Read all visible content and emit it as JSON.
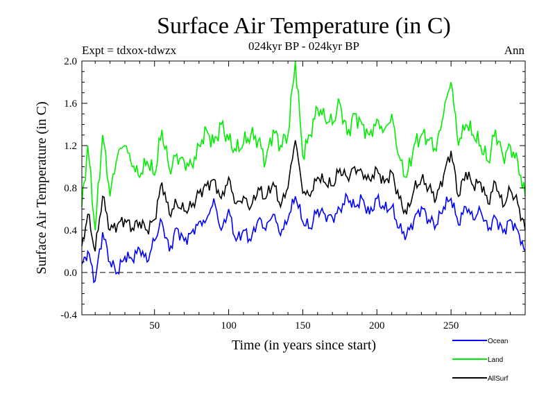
{
  "chart_data": {
    "type": "line",
    "title": "Surface Air Temperature (in C)",
    "subtitle": "024kyr BP - 024kyr BP",
    "experiment": "Expt = tdxox-tdwzx",
    "season": "Ann",
    "xlabel": "Time (in years since start)",
    "ylabel": "Surface Air Temperature (in C)",
    "xlim": [
      1,
      300
    ],
    "ylim": [
      -0.4,
      2.0
    ],
    "xticks": [
      50,
      100,
      150,
      200,
      250
    ],
    "yticks": [
      -0.4,
      0.0,
      0.4,
      0.8,
      1.2,
      1.6,
      2.0
    ],
    "ytick_labels": [
      "-0.4",
      "0.0",
      "0.4",
      "0.8",
      "1.2",
      "1.6",
      "2.0"
    ],
    "zero_line": 0.0,
    "grid": false,
    "legend_position": "bottom-right",
    "series": [
      {
        "name": "Ocean",
        "color": "#0000ff",
        "x": [
          1,
          5,
          10,
          15,
          20,
          25,
          30,
          35,
          40,
          45,
          50,
          55,
          60,
          65,
          70,
          75,
          80,
          85,
          90,
          95,
          100,
          105,
          110,
          115,
          120,
          125,
          130,
          135,
          140,
          145,
          150,
          155,
          160,
          165,
          170,
          175,
          180,
          185,
          190,
          195,
          200,
          205,
          210,
          215,
          220,
          225,
          230,
          235,
          240,
          245,
          250,
          255,
          260,
          265,
          270,
          275,
          280,
          285,
          290,
          295,
          300
        ],
        "values": [
          0.08,
          0.2,
          -0.08,
          0.38,
          0.1,
          0.0,
          0.15,
          0.12,
          0.22,
          0.1,
          0.3,
          0.48,
          0.2,
          0.42,
          0.3,
          0.38,
          0.48,
          0.5,
          0.7,
          0.4,
          0.6,
          0.3,
          0.4,
          0.3,
          0.5,
          0.4,
          0.55,
          0.35,
          0.5,
          0.72,
          0.48,
          0.42,
          0.6,
          0.55,
          0.52,
          0.6,
          0.72,
          0.62,
          0.7,
          0.55,
          0.7,
          0.6,
          0.62,
          0.42,
          0.35,
          0.5,
          0.62,
          0.5,
          0.45,
          0.62,
          0.7,
          0.45,
          0.62,
          0.5,
          0.58,
          0.4,
          0.52,
          0.38,
          0.5,
          0.4,
          0.2
        ]
      },
      {
        "name": "Land",
        "color": "#00ee00",
        "x": [
          1,
          5,
          10,
          15,
          20,
          25,
          30,
          35,
          40,
          45,
          50,
          55,
          60,
          65,
          70,
          75,
          80,
          85,
          90,
          95,
          100,
          105,
          110,
          115,
          120,
          125,
          130,
          135,
          140,
          145,
          150,
          155,
          160,
          165,
          170,
          175,
          180,
          185,
          190,
          195,
          200,
          205,
          210,
          215,
          220,
          225,
          230,
          235,
          240,
          245,
          250,
          255,
          260,
          265,
          270,
          275,
          280,
          285,
          290,
          295,
          300
        ],
        "values": [
          0.62,
          1.2,
          0.4,
          1.3,
          0.72,
          1.1,
          1.2,
          1.0,
          0.9,
          1.05,
          0.92,
          1.35,
          0.98,
          1.12,
          1.05,
          1.02,
          1.2,
          1.35,
          1.22,
          1.4,
          1.25,
          1.15,
          1.22,
          1.3,
          1.25,
          1.05,
          1.35,
          1.2,
          1.3,
          2.0,
          1.1,
          1.3,
          1.55,
          1.45,
          1.4,
          1.6,
          1.3,
          1.5,
          1.4,
          1.3,
          1.45,
          1.35,
          1.5,
          1.1,
          0.9,
          1.2,
          1.3,
          1.25,
          1.15,
          1.5,
          1.8,
          1.2,
          1.4,
          1.3,
          1.2,
          1.05,
          1.35,
          1.1,
          1.2,
          1.05,
          0.72
        ]
      },
      {
        "name": "AllSurf",
        "color": "#000000",
        "x": [
          1,
          5,
          10,
          15,
          20,
          25,
          30,
          35,
          40,
          45,
          50,
          55,
          60,
          65,
          70,
          75,
          80,
          85,
          90,
          95,
          100,
          105,
          110,
          115,
          120,
          125,
          130,
          135,
          140,
          145,
          150,
          155,
          160,
          165,
          170,
          175,
          180,
          185,
          190,
          195,
          200,
          205,
          210,
          215,
          220,
          225,
          230,
          235,
          240,
          245,
          250,
          255,
          260,
          265,
          270,
          275,
          280,
          285,
          290,
          295,
          300
        ],
        "values": [
          0.25,
          0.55,
          0.2,
          0.72,
          0.4,
          0.45,
          0.5,
          0.42,
          0.48,
          0.4,
          0.5,
          0.85,
          0.55,
          0.65,
          0.58,
          0.62,
          0.75,
          0.82,
          0.88,
          0.7,
          0.9,
          0.65,
          0.72,
          0.62,
          0.8,
          0.7,
          0.85,
          0.62,
          0.8,
          1.25,
          0.75,
          0.72,
          0.9,
          0.85,
          0.82,
          0.98,
          0.9,
          1.0,
          0.95,
          0.88,
          0.98,
          0.85,
          0.95,
          0.7,
          0.55,
          0.78,
          0.88,
          0.8,
          0.7,
          0.92,
          1.15,
          0.72,
          0.95,
          0.82,
          0.85,
          0.65,
          0.85,
          0.62,
          0.78,
          0.65,
          0.4
        ]
      }
    ]
  }
}
